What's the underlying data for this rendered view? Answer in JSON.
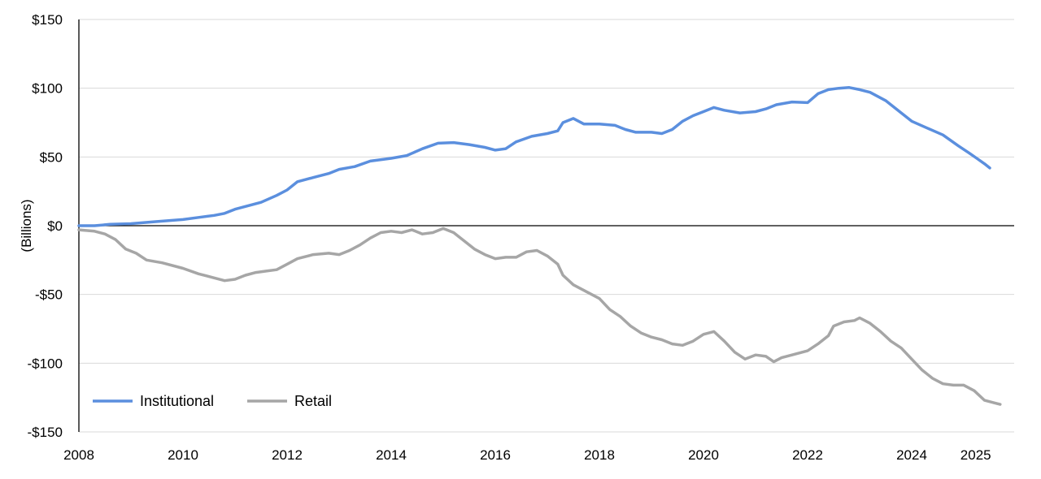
{
  "chart_data": {
    "type": "line",
    "title": "",
    "xlabel": "",
    "ylabel": "(Billions)",
    "xlim": [
      2008,
      2025.3
    ],
    "ylim": [
      -150,
      150
    ],
    "x_ticks": [
      "2008",
      "2010",
      "2012",
      "2014",
      "2016",
      "2018",
      "2020",
      "2022",
      "2024",
      "2025"
    ],
    "y_ticks": [
      "$150",
      "$100",
      "$50",
      "$0",
      "-$50",
      "-$100",
      "-$150"
    ],
    "y_tick_values": [
      150,
      100,
      50,
      0,
      -50,
      -100,
      -150
    ],
    "grid": "horizontal",
    "legend_position": "bottom-left",
    "series": [
      {
        "name": "Institutional",
        "color": "#5b8fde",
        "points": [
          [
            2008.0,
            0
          ],
          [
            2008.3,
            0
          ],
          [
            2008.6,
            1
          ],
          [
            2009.0,
            1.5
          ],
          [
            2009.5,
            3
          ],
          [
            2010.0,
            4.5
          ],
          [
            2010.3,
            6
          ],
          [
            2010.6,
            7.5
          ],
          [
            2010.8,
            9
          ],
          [
            2011.0,
            12
          ],
          [
            2011.5,
            17
          ],
          [
            2011.8,
            22
          ],
          [
            2012.0,
            26
          ],
          [
            2012.2,
            32
          ],
          [
            2012.5,
            35
          ],
          [
            2012.8,
            38
          ],
          [
            2013.0,
            41
          ],
          [
            2013.3,
            43
          ],
          [
            2013.6,
            47
          ],
          [
            2014.0,
            49
          ],
          [
            2014.3,
            51
          ],
          [
            2014.6,
            56
          ],
          [
            2014.9,
            60
          ],
          [
            2015.2,
            60.5
          ],
          [
            2015.5,
            59
          ],
          [
            2015.8,
            57
          ],
          [
            2016.0,
            55
          ],
          [
            2016.2,
            56
          ],
          [
            2016.4,
            61
          ],
          [
            2016.7,
            65
          ],
          [
            2017.0,
            67
          ],
          [
            2017.2,
            69
          ],
          [
            2017.3,
            75
          ],
          [
            2017.5,
            78
          ],
          [
            2017.7,
            74
          ],
          [
            2018.0,
            74
          ],
          [
            2018.3,
            73
          ],
          [
            2018.5,
            70
          ],
          [
            2018.7,
            68
          ],
          [
            2019.0,
            68
          ],
          [
            2019.2,
            67
          ],
          [
            2019.4,
            70
          ],
          [
            2019.6,
            76
          ],
          [
            2019.8,
            80
          ],
          [
            2020.0,
            83
          ],
          [
            2020.2,
            86
          ],
          [
            2020.4,
            84
          ],
          [
            2020.7,
            82
          ],
          [
            2021.0,
            83
          ],
          [
            2021.2,
            85
          ],
          [
            2021.4,
            88
          ],
          [
            2021.7,
            90
          ],
          [
            2022.0,
            89.5
          ],
          [
            2022.2,
            96
          ],
          [
            2022.4,
            99
          ],
          [
            2022.6,
            100
          ],
          [
            2022.8,
            100.5
          ],
          [
            2023.0,
            99
          ],
          [
            2023.2,
            97
          ],
          [
            2023.5,
            91
          ],
          [
            2023.8,
            82
          ],
          [
            2024.0,
            76
          ],
          [
            2024.3,
            71
          ],
          [
            2024.6,
            66
          ],
          [
            2024.9,
            58
          ],
          [
            2025.1,
            53
          ],
          [
            2025.25,
            49
          ],
          [
            2025.4,
            45
          ],
          [
            2025.5,
            42
          ]
        ]
      },
      {
        "name": "Retail",
        "color": "#a6a6a6",
        "points": [
          [
            2008.0,
            -3
          ],
          [
            2008.3,
            -4
          ],
          [
            2008.5,
            -6
          ],
          [
            2008.7,
            -10
          ],
          [
            2008.9,
            -17
          ],
          [
            2009.1,
            -20
          ],
          [
            2009.3,
            -25
          ],
          [
            2009.6,
            -27
          ],
          [
            2010.0,
            -31
          ],
          [
            2010.3,
            -35
          ],
          [
            2010.6,
            -38
          ],
          [
            2010.8,
            -40
          ],
          [
            2011.0,
            -39
          ],
          [
            2011.2,
            -36
          ],
          [
            2011.4,
            -34
          ],
          [
            2011.6,
            -33
          ],
          [
            2011.8,
            -32
          ],
          [
            2012.0,
            -28
          ],
          [
            2012.2,
            -24
          ],
          [
            2012.5,
            -21
          ],
          [
            2012.8,
            -20
          ],
          [
            2013.0,
            -21
          ],
          [
            2013.2,
            -18
          ],
          [
            2013.4,
            -14
          ],
          [
            2013.6,
            -9
          ],
          [
            2013.8,
            -5
          ],
          [
            2014.0,
            -4
          ],
          [
            2014.2,
            -5
          ],
          [
            2014.4,
            -3
          ],
          [
            2014.6,
            -6
          ],
          [
            2014.8,
            -5
          ],
          [
            2015.0,
            -2
          ],
          [
            2015.2,
            -5
          ],
          [
            2015.4,
            -11
          ],
          [
            2015.6,
            -17
          ],
          [
            2015.8,
            -21
          ],
          [
            2016.0,
            -24
          ],
          [
            2016.2,
            -23
          ],
          [
            2016.4,
            -23
          ],
          [
            2016.6,
            -19
          ],
          [
            2016.8,
            -18
          ],
          [
            2017.0,
            -22
          ],
          [
            2017.2,
            -28
          ],
          [
            2017.3,
            -36
          ],
          [
            2017.5,
            -43
          ],
          [
            2017.7,
            -47
          ],
          [
            2018.0,
            -53
          ],
          [
            2018.2,
            -61
          ],
          [
            2018.4,
            -66
          ],
          [
            2018.6,
            -73
          ],
          [
            2018.8,
            -78
          ],
          [
            2019.0,
            -81
          ],
          [
            2019.2,
            -83
          ],
          [
            2019.4,
            -86
          ],
          [
            2019.6,
            -87
          ],
          [
            2019.8,
            -84
          ],
          [
            2020.0,
            -79
          ],
          [
            2020.2,
            -77
          ],
          [
            2020.4,
            -84
          ],
          [
            2020.6,
            -92
          ],
          [
            2020.8,
            -97
          ],
          [
            2021.0,
            -94
          ],
          [
            2021.2,
            -95
          ],
          [
            2021.35,
            -99
          ],
          [
            2021.5,
            -96
          ],
          [
            2021.7,
            -94
          ],
          [
            2022.0,
            -91
          ],
          [
            2022.2,
            -86
          ],
          [
            2022.4,
            -80
          ],
          [
            2022.5,
            -73
          ],
          [
            2022.7,
            -70
          ],
          [
            2022.9,
            -69
          ],
          [
            2023.0,
            -67
          ],
          [
            2023.2,
            -71
          ],
          [
            2023.4,
            -77
          ],
          [
            2023.6,
            -84
          ],
          [
            2023.8,
            -89
          ],
          [
            2024.0,
            -97
          ],
          [
            2024.2,
            -105
          ],
          [
            2024.4,
            -111
          ],
          [
            2024.6,
            -115
          ],
          [
            2024.8,
            -116
          ],
          [
            2025.0,
            -116
          ],
          [
            2025.2,
            -120
          ],
          [
            2025.4,
            -127
          ],
          [
            2025.6,
            -129
          ],
          [
            2025.7,
            -130
          ]
        ]
      }
    ]
  }
}
